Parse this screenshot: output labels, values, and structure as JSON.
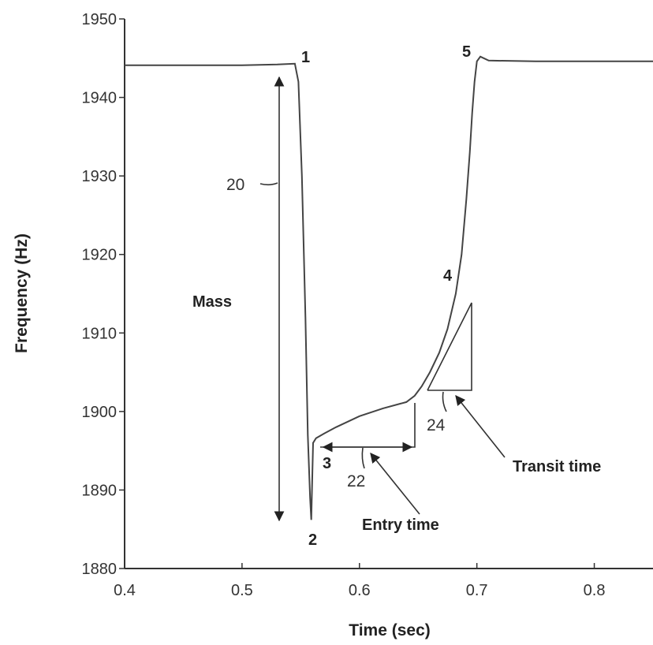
{
  "chart_data": {
    "type": "line",
    "xlabel": "Time (sec)",
    "ylabel": "Frequency (Hz)",
    "xlim": [
      0.4,
      0.85
    ],
    "ylim": [
      1880,
      1950
    ],
    "xticks": [
      0.4,
      0.5,
      0.6,
      0.7,
      0.8
    ],
    "xtick_labels": [
      "0.4",
      "0.5",
      "0.6",
      "0.7",
      "0.8"
    ],
    "yticks": [
      1880,
      1890,
      1900,
      1910,
      1920,
      1930,
      1940,
      1950
    ],
    "ytick_labels": [
      "1880",
      "1890",
      "1900",
      "1910",
      "1920",
      "1930",
      "1940",
      "1950"
    ],
    "series": [
      {
        "x": [
          0.4,
          0.45,
          0.5,
          0.53,
          0.545,
          0.548,
          0.551,
          0.554,
          0.556,
          0.558,
          0.559,
          0.5605,
          0.563,
          0.57,
          0.58,
          0.6,
          0.62,
          0.64,
          0.647,
          0.653,
          0.66,
          0.668,
          0.675,
          0.682,
          0.687,
          0.691,
          0.694,
          0.696,
          0.698,
          0.7,
          0.703,
          0.71,
          0.75,
          0.8,
          0.85
        ],
        "y": [
          1944.1,
          1944.1,
          1944.1,
          1944.2,
          1944.3,
          1942,
          1930,
          1912,
          1897,
          1889,
          1886.2,
          1896,
          1896.6,
          1897.2,
          1898,
          1899.4,
          1900.4,
          1901.2,
          1902,
          1903.2,
          1905,
          1907.5,
          1910.5,
          1915,
          1920,
          1927,
          1933,
          1938,
          1942,
          1944.6,
          1945.2,
          1944.7,
          1944.6,
          1944.6,
          1944.6
        ]
      }
    ],
    "annotations": {
      "points": [
        "1",
        "2",
        "3",
        "4",
        "5"
      ],
      "refs": [
        "20",
        "22",
        "24"
      ],
      "mass": "Mass",
      "entry_time": "Entry time",
      "transit_time": "Transit time"
    }
  }
}
